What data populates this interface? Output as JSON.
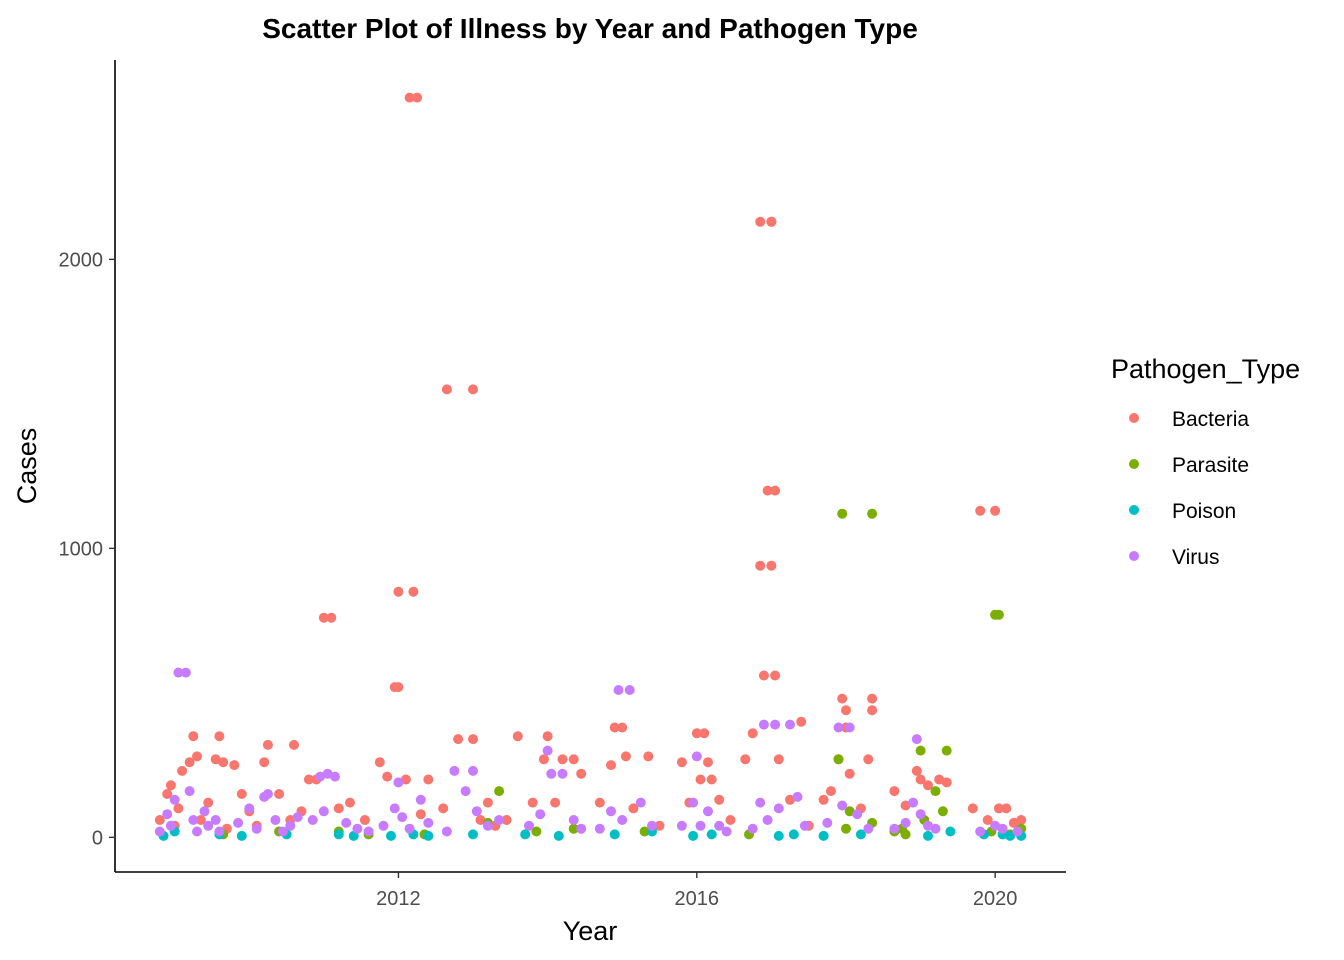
{
  "chart_data": {
    "type": "scatter",
    "title": "Scatter Plot of Illness by Year and Pathogen Type",
    "xlabel": "Year",
    "ylabel": "Cases",
    "xlim": [
      2008.2,
      2020.95
    ],
    "ylim": [
      -120,
      2690
    ],
    "x_ticks": [
      2012,
      2016,
      2020
    ],
    "y_ticks": [
      0,
      1000,
      2000
    ],
    "grid": false,
    "legend": {
      "title": "Pathogen_Type",
      "position": "right"
    },
    "series": [
      {
        "name": "Bacteria",
        "color": "#F8766D",
        "points": [
          [
            2008.8,
            60
          ],
          [
            2008.9,
            150
          ],
          [
            2008.95,
            180
          ],
          [
            2009.0,
            40
          ],
          [
            2009.05,
            100
          ],
          [
            2009.1,
            230
          ],
          [
            2009.2,
            260
          ],
          [
            2009.25,
            350
          ],
          [
            2009.3,
            280
          ],
          [
            2009.35,
            60
          ],
          [
            2009.45,
            120
          ],
          [
            2009.55,
            270
          ],
          [
            2009.6,
            350
          ],
          [
            2009.65,
            260
          ],
          [
            2009.7,
            30
          ],
          [
            2009.8,
            250
          ],
          [
            2009.9,
            150
          ],
          [
            2010.0,
            90
          ],
          [
            2010.1,
            40
          ],
          [
            2010.2,
            260
          ],
          [
            2010.25,
            320
          ],
          [
            2010.4,
            150
          ],
          [
            2010.55,
            60
          ],
          [
            2010.6,
            320
          ],
          [
            2010.7,
            90
          ],
          [
            2010.8,
            200
          ],
          [
            2010.9,
            200
          ],
          [
            2011.0,
            760
          ],
          [
            2011.1,
            760
          ],
          [
            2011.2,
            100
          ],
          [
            2011.35,
            120
          ],
          [
            2011.55,
            60
          ],
          [
            2011.75,
            260
          ],
          [
            2011.85,
            210
          ],
          [
            2011.95,
            520
          ],
          [
            2012.0,
            520
          ],
          [
            2012.0,
            850
          ],
          [
            2012.1,
            200
          ],
          [
            2012.15,
            2560
          ],
          [
            2012.25,
            2560
          ],
          [
            2012.2,
            850
          ],
          [
            2012.3,
            80
          ],
          [
            2012.4,
            200
          ],
          [
            2012.6,
            100
          ],
          [
            2012.65,
            1550
          ],
          [
            2012.8,
            340
          ],
          [
            2013.0,
            1550
          ],
          [
            2013.0,
            340
          ],
          [
            2013.1,
            60
          ],
          [
            2013.2,
            120
          ],
          [
            2013.3,
            40
          ],
          [
            2013.45,
            60
          ],
          [
            2013.6,
            350
          ],
          [
            2013.8,
            120
          ],
          [
            2013.95,
            270
          ],
          [
            2014.0,
            350
          ],
          [
            2014.1,
            120
          ],
          [
            2014.2,
            270
          ],
          [
            2014.35,
            270
          ],
          [
            2014.45,
            220
          ],
          [
            2014.7,
            120
          ],
          [
            2014.85,
            250
          ],
          [
            2014.9,
            380
          ],
          [
            2015.0,
            380
          ],
          [
            2015.05,
            280
          ],
          [
            2015.15,
            100
          ],
          [
            2015.35,
            280
          ],
          [
            2015.5,
            40
          ],
          [
            2015.8,
            260
          ],
          [
            2015.9,
            120
          ],
          [
            2016.0,
            360
          ],
          [
            2016.05,
            200
          ],
          [
            2016.1,
            360
          ],
          [
            2016.15,
            260
          ],
          [
            2016.2,
            200
          ],
          [
            2016.3,
            130
          ],
          [
            2016.45,
            60
          ],
          [
            2016.65,
            270
          ],
          [
            2016.75,
            360
          ],
          [
            2016.85,
            940
          ],
          [
            2016.9,
            560
          ],
          [
            2016.95,
            1200
          ],
          [
            2017.0,
            2130
          ],
          [
            2017.05,
            1200
          ],
          [
            2017.0,
            940
          ],
          [
            2017.05,
            560
          ],
          [
            2017.1,
            270
          ],
          [
            2017.0,
            2130
          ],
          [
            2016.85,
            2130
          ],
          [
            2017.25,
            130
          ],
          [
            2017.4,
            400
          ],
          [
            2017.5,
            40
          ],
          [
            2017.7,
            130
          ],
          [
            2017.8,
            160
          ],
          [
            2017.9,
            270
          ],
          [
            2017.95,
            480
          ],
          [
            2018.0,
            440
          ],
          [
            2018.0,
            380
          ],
          [
            2018.05,
            220
          ],
          [
            2018.2,
            100
          ],
          [
            2018.3,
            270
          ],
          [
            2018.35,
            480
          ],
          [
            2018.35,
            440
          ],
          [
            2018.65,
            160
          ],
          [
            2018.8,
            110
          ],
          [
            2018.95,
            230
          ],
          [
            2019.0,
            200
          ],
          [
            2019.1,
            180
          ],
          [
            2019.25,
            200
          ],
          [
            2019.35,
            190
          ],
          [
            2019.7,
            100
          ],
          [
            2019.8,
            1130
          ],
          [
            2019.9,
            60
          ],
          [
            2020.0,
            1130
          ],
          [
            2020.05,
            100
          ],
          [
            2020.15,
            100
          ],
          [
            2020.25,
            50
          ],
          [
            2020.35,
            60
          ]
        ]
      },
      {
        "name": "Parasite",
        "color": "#7CAE00",
        "points": [
          [
            2009.65,
            10
          ],
          [
            2010.4,
            20
          ],
          [
            2011.2,
            20
          ],
          [
            2011.6,
            10
          ],
          [
            2012.35,
            10
          ],
          [
            2013.2,
            50
          ],
          [
            2013.35,
            160
          ],
          [
            2013.85,
            20
          ],
          [
            2014.35,
            30
          ],
          [
            2015.3,
            20
          ],
          [
            2016.7,
            10
          ],
          [
            2017.9,
            270
          ],
          [
            2017.95,
            1120
          ],
          [
            2018.0,
            30
          ],
          [
            2018.05,
            90
          ],
          [
            2018.35,
            1120
          ],
          [
            2018.35,
            50
          ],
          [
            2018.65,
            20
          ],
          [
            2018.75,
            30
          ],
          [
            2018.8,
            10
          ],
          [
            2019.0,
            300
          ],
          [
            2019.05,
            60
          ],
          [
            2019.2,
            160
          ],
          [
            2019.3,
            90
          ],
          [
            2019.35,
            300
          ],
          [
            2019.95,
            20
          ],
          [
            2020.0,
            770
          ],
          [
            2020.05,
            770
          ],
          [
            2020.2,
            10
          ],
          [
            2020.35,
            30
          ]
        ]
      },
      {
        "name": "Poison",
        "color": "#00BFC4",
        "points": [
          [
            2008.85,
            5
          ],
          [
            2009.0,
            20
          ],
          [
            2009.6,
            10
          ],
          [
            2009.9,
            5
          ],
          [
            2010.5,
            10
          ],
          [
            2011.2,
            10
          ],
          [
            2011.4,
            5
          ],
          [
            2011.9,
            5
          ],
          [
            2012.2,
            10
          ],
          [
            2012.4,
            5
          ],
          [
            2013.0,
            10
          ],
          [
            2013.7,
            10
          ],
          [
            2014.15,
            5
          ],
          [
            2014.9,
            10
          ],
          [
            2015.4,
            20
          ],
          [
            2015.95,
            5
          ],
          [
            2016.2,
            10
          ],
          [
            2017.1,
            5
          ],
          [
            2017.3,
            10
          ],
          [
            2017.7,
            5
          ],
          [
            2018.2,
            10
          ],
          [
            2019.1,
            5
          ],
          [
            2019.4,
            20
          ],
          [
            2019.85,
            10
          ],
          [
            2020.1,
            10
          ],
          [
            2020.2,
            5
          ],
          [
            2020.35,
            5
          ]
        ]
      },
      {
        "name": "Virus",
        "color": "#C77CFF",
        "points": [
          [
            2008.8,
            20
          ],
          [
            2008.9,
            80
          ],
          [
            2008.95,
            40
          ],
          [
            2009.0,
            130
          ],
          [
            2009.05,
            570
          ],
          [
            2009.15,
            570
          ],
          [
            2009.2,
            160
          ],
          [
            2009.25,
            60
          ],
          [
            2009.3,
            20
          ],
          [
            2009.4,
            90
          ],
          [
            2009.45,
            40
          ],
          [
            2009.55,
            60
          ],
          [
            2009.6,
            20
          ],
          [
            2009.85,
            50
          ],
          [
            2010.0,
            100
          ],
          [
            2010.1,
            30
          ],
          [
            2010.2,
            140
          ],
          [
            2010.25,
            150
          ],
          [
            2010.35,
            60
          ],
          [
            2010.45,
            20
          ],
          [
            2010.55,
            40
          ],
          [
            2010.65,
            70
          ],
          [
            2010.85,
            60
          ],
          [
            2010.95,
            210
          ],
          [
            2011.0,
            90
          ],
          [
            2011.05,
            220
          ],
          [
            2011.15,
            210
          ],
          [
            2011.3,
            50
          ],
          [
            2011.45,
            30
          ],
          [
            2011.6,
            20
          ],
          [
            2011.8,
            40
          ],
          [
            2011.95,
            100
          ],
          [
            2012.0,
            190
          ],
          [
            2012.05,
            70
          ],
          [
            2012.15,
            30
          ],
          [
            2012.3,
            130
          ],
          [
            2012.4,
            50
          ],
          [
            2012.65,
            20
          ],
          [
            2012.75,
            230
          ],
          [
            2012.9,
            160
          ],
          [
            2013.0,
            230
          ],
          [
            2013.05,
            90
          ],
          [
            2013.2,
            40
          ],
          [
            2013.35,
            60
          ],
          [
            2013.75,
            40
          ],
          [
            2013.9,
            80
          ],
          [
            2014.0,
            300
          ],
          [
            2014.05,
            220
          ],
          [
            2014.2,
            220
          ],
          [
            2014.35,
            60
          ],
          [
            2014.45,
            30
          ],
          [
            2014.7,
            30
          ],
          [
            2014.85,
            90
          ],
          [
            2014.95,
            510
          ],
          [
            2015.0,
            60
          ],
          [
            2015.1,
            510
          ],
          [
            2015.25,
            120
          ],
          [
            2015.4,
            40
          ],
          [
            2015.8,
            40
          ],
          [
            2015.95,
            120
          ],
          [
            2016.0,
            280
          ],
          [
            2016.05,
            40
          ],
          [
            2016.15,
            90
          ],
          [
            2016.3,
            40
          ],
          [
            2016.4,
            20
          ],
          [
            2016.75,
            30
          ],
          [
            2016.85,
            120
          ],
          [
            2016.9,
            390
          ],
          [
            2016.95,
            60
          ],
          [
            2017.05,
            390
          ],
          [
            2017.1,
            100
          ],
          [
            2017.25,
            390
          ],
          [
            2017.35,
            140
          ],
          [
            2017.45,
            40
          ],
          [
            2017.75,
            50
          ],
          [
            2017.9,
            380
          ],
          [
            2017.95,
            110
          ],
          [
            2018.05,
            380
          ],
          [
            2018.15,
            80
          ],
          [
            2018.3,
            30
          ],
          [
            2018.65,
            30
          ],
          [
            2018.8,
            50
          ],
          [
            2018.9,
            120
          ],
          [
            2018.95,
            340
          ],
          [
            2019.0,
            80
          ],
          [
            2019.1,
            40
          ],
          [
            2019.2,
            30
          ],
          [
            2019.8,
            20
          ],
          [
            2020.0,
            40
          ],
          [
            2020.1,
            30
          ],
          [
            2020.3,
            20
          ]
        ]
      }
    ]
  }
}
